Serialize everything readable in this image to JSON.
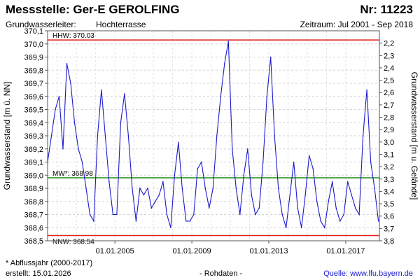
{
  "header": {
    "title": "Messstelle: Ger-E GEROLFING",
    "number": "Nr: 11223",
    "aquifer_label": "Grundwasserleiter:",
    "aquifer_value": "Hochterrasse",
    "period": "Zeitraum: Jul 2001 - Sep 2018"
  },
  "footer": {
    "footnote": "* Abflussjahr (2000-2017)",
    "created": "erstellt:  15.01.2026",
    "raw_data": "- Rohdaten -",
    "source": "Quelle: www.lfu.bayern.de"
  },
  "chart_data": {
    "type": "line",
    "ylabel": "Grundwasserstand [m ü. NN]",
    "ylabel_right": "Grundwasserstand [m u. Gelände]",
    "ylim": [
      368.5,
      370.1
    ],
    "y_ticks": [
      "368,5",
      "368,6",
      "368,7",
      "368,8",
      "368,9",
      "369,0",
      "369,1",
      "369,2",
      "369,3",
      "369,4",
      "369,5",
      "369,6",
      "369,7",
      "369,8",
      "369,9",
      "370,0",
      "370,1"
    ],
    "y2lim": [
      2.1,
      3.8
    ],
    "y2_ticks": [
      "2,2",
      "2,3",
      "2,4",
      "2,5",
      "2,6",
      "2,7",
      "2,8",
      "2,9",
      "3,0",
      "3,1",
      "3,2",
      "3,3",
      "3,4",
      "3,5",
      "3,6",
      "3,7",
      "3,8"
    ],
    "xlim": [
      2001.5,
      2018.75
    ],
    "x_ticks": [
      {
        "value": 2005,
        "label": "01.01.2005"
      },
      {
        "value": 2009,
        "label": "01.01.2009"
      },
      {
        "value": 2013,
        "label": "01.01.2013"
      },
      {
        "value": 2017,
        "label": "01.01.2017"
      }
    ],
    "grid": true,
    "reference_lines": [
      {
        "label": "HHW: 370.03",
        "value": 370.03,
        "color": "#e02020"
      },
      {
        "label": "MW*: 368.98",
        "value": 368.98,
        "color": "#1f8a1f"
      },
      {
        "label": "NNW: 368.54",
        "value": 368.54,
        "color": "#e02020"
      }
    ],
    "series": [
      {
        "color": "#1a1acc",
        "x": [
          2001.5,
          2001.7,
          2001.9,
          2002.1,
          2002.3,
          2002.5,
          2002.7,
          2002.9,
          2003.1,
          2003.3,
          2003.5,
          2003.7,
          2003.9,
          2004.1,
          2004.3,
          2004.5,
          2004.7,
          2004.9,
          2005.1,
          2005.3,
          2005.5,
          2005.7,
          2005.9,
          2006.1,
          2006.3,
          2006.5,
          2006.7,
          2006.9,
          2007.1,
          2007.3,
          2007.5,
          2007.7,
          2007.9,
          2008.1,
          2008.3,
          2008.5,
          2008.7,
          2008.9,
          2009.1,
          2009.3,
          2009.5,
          2009.7,
          2009.9,
          2010.1,
          2010.3,
          2010.5,
          2010.7,
          2010.9,
          2011.1,
          2011.3,
          2011.5,
          2011.7,
          2011.9,
          2012.1,
          2012.3,
          2012.5,
          2012.7,
          2012.9,
          2013.1,
          2013.3,
          2013.5,
          2013.7,
          2013.9,
          2014.1,
          2014.3,
          2014.5,
          2014.7,
          2014.9,
          2015.1,
          2015.3,
          2015.5,
          2015.7,
          2015.9,
          2016.1,
          2016.3,
          2016.5,
          2016.7,
          2016.9,
          2017.1,
          2017.3,
          2017.5,
          2017.7,
          2017.9,
          2018.1,
          2018.3,
          2018.5,
          2018.7
        ],
        "y": [
          369.1,
          369.3,
          369.5,
          369.6,
          369.2,
          369.85,
          369.7,
          369.4,
          369.2,
          369.1,
          368.9,
          368.7,
          368.65,
          369.3,
          369.65,
          369.3,
          368.95,
          368.7,
          368.7,
          369.4,
          369.62,
          369.3,
          368.9,
          368.65,
          368.9,
          368.85,
          368.9,
          368.75,
          368.8,
          368.85,
          368.95,
          368.7,
          368.6,
          369.0,
          369.25,
          368.9,
          368.65,
          368.65,
          368.7,
          369.05,
          369.1,
          368.9,
          368.75,
          368.9,
          369.3,
          369.6,
          369.85,
          370.02,
          369.2,
          368.9,
          368.7,
          369.0,
          369.2,
          368.85,
          368.7,
          368.75,
          369.1,
          369.6,
          369.9,
          369.3,
          368.9,
          368.7,
          368.6,
          368.85,
          369.1,
          368.75,
          368.6,
          368.85,
          369.15,
          369.05,
          368.8,
          368.65,
          368.6,
          368.8,
          368.95,
          368.75,
          368.65,
          368.7,
          368.95,
          368.85,
          368.75,
          368.7,
          369.3,
          369.65,
          369.1,
          368.9,
          368.65
        ]
      }
    ]
  }
}
